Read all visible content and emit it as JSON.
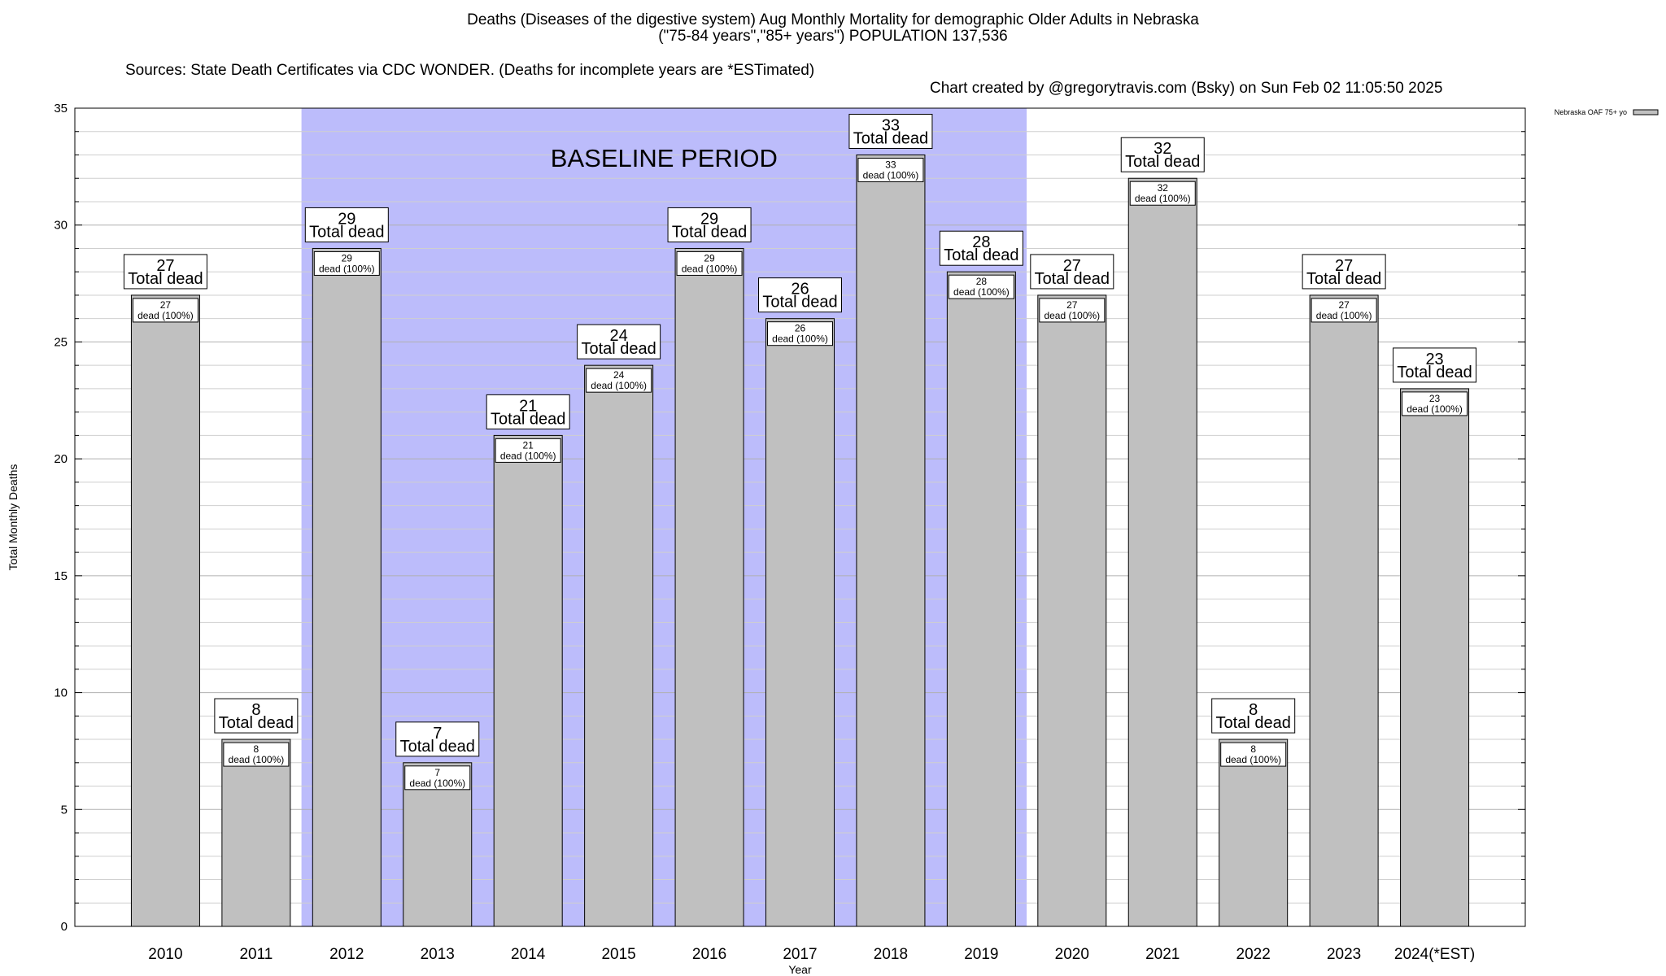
{
  "header": {
    "title": "Deaths (Diseases of the digestive system) Aug Monthly Mortality for demographic Older Adults in Nebraska",
    "subtitle": "(\"75-84 years\",\"85+ years\") POPULATION 137,536",
    "sources": "Sources: State Death Certificates via CDC WONDER. (Deaths for incomplete years are *ESTimated)",
    "credit": "Chart created by @gregorytravis.com (Bsky) on Sun Feb 02 11:05:50 2025"
  },
  "chart_data": {
    "type": "bar",
    "categories": [
      "2010",
      "2011",
      "2012",
      "2013",
      "2014",
      "2015",
      "2016",
      "2017",
      "2018",
      "2019",
      "2020",
      "2021",
      "2022",
      "2023",
      "2024(*EST)"
    ],
    "series": [
      {
        "name": "Nebraska OAF 75+ yo",
        "values": [
          27,
          8,
          29,
          7,
          21,
          24,
          29,
          26,
          33,
          28,
          27,
          32,
          8,
          27,
          23
        ]
      }
    ],
    "xlabel": "Year",
    "ylabel": "Total Monthly Deaths",
    "ylim": [
      0,
      35
    ],
    "yticks": [
      0,
      5,
      10,
      15,
      20,
      25,
      30,
      35
    ],
    "grid": true,
    "legend": "top-right",
    "bar_color": "#c0c0c0",
    "baseline": {
      "label": "BASELINE PERIOD",
      "start": "2012",
      "end": "2019",
      "color": "#bcbcfb"
    },
    "label_total_text": "Total dead",
    "label_inner_text": "dead (100%)"
  }
}
